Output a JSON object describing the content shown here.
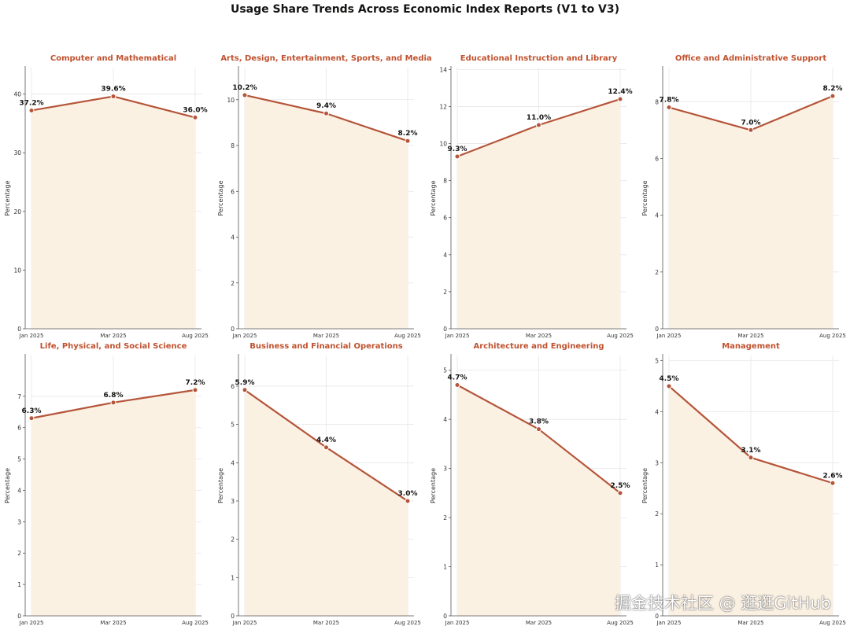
{
  "figure_title": "Usage Share Trends Across Economic Index Reports (V1 to V3)",
  "watermark": "掘金技术社区 @ 逛逛GitHub",
  "colors": {
    "line": "#b5553a",
    "fill": "#fbf1e3",
    "title": "#c0522f",
    "grid": "#e6e6e6",
    "axis": "#555555"
  },
  "chart_data": [
    {
      "type": "area",
      "title": "Computer and Mathematical",
      "x": [
        "Jan 2025",
        "Mar 2025",
        "Aug 2025"
      ],
      "values": [
        37.2,
        39.6,
        36.0
      ],
      "labels": [
        "37.2%",
        "39.6%",
        "36.0%"
      ],
      "ylabel": "Percentage",
      "ylim": [
        0,
        44.5
      ],
      "yticks": [
        0,
        10,
        20,
        30,
        40
      ],
      "grid": true
    },
    {
      "type": "area",
      "title": "Arts, Design, Entertainment, Sports, and Media",
      "x": [
        "Jan 2025",
        "Mar 2025",
        "Aug 2025"
      ],
      "values": [
        10.2,
        9.4,
        8.2
      ],
      "labels": [
        "10.2%",
        "9.4%",
        "8.2%"
      ],
      "ylabel": "Percentage",
      "ylim": [
        0,
        11.4
      ],
      "yticks": [
        0,
        2,
        4,
        6,
        8,
        10
      ],
      "grid": true
    },
    {
      "type": "area",
      "title": "Educational Instruction and Library",
      "x": [
        "Jan 2025",
        "Mar 2025",
        "Aug 2025"
      ],
      "values": [
        9.3,
        11.0,
        12.4
      ],
      "labels": [
        "9.3%",
        "11.0%",
        "12.4%"
      ],
      "ylabel": "Percentage",
      "ylim": [
        0,
        14.1
      ],
      "yticks": [
        0,
        2,
        4,
        6,
        8,
        10,
        12,
        14
      ],
      "grid": true
    },
    {
      "type": "area",
      "title": "Office and Administrative Support",
      "x": [
        "Jan 2025",
        "Mar 2025",
        "Aug 2025"
      ],
      "values": [
        7.8,
        7.0,
        8.2
      ],
      "labels": [
        "7.8%",
        "7.0%",
        "8.2%"
      ],
      "ylabel": "Percentage",
      "ylim": [
        0,
        9.2
      ],
      "yticks": [
        0,
        2,
        4,
        6,
        8
      ],
      "grid": true
    },
    {
      "type": "area",
      "title": "Life, Physical, and Social Science",
      "x": [
        "Jan 2025",
        "Mar 2025",
        "Aug 2025"
      ],
      "values": [
        6.3,
        6.8,
        7.2
      ],
      "labels": [
        "6.3%",
        "6.8%",
        "7.2%"
      ],
      "ylabel": "Percentage",
      "ylim": [
        0,
        8.3
      ],
      "yticks": [
        0,
        1,
        2,
        3,
        4,
        5,
        6,
        7
      ],
      "grid": true
    },
    {
      "type": "area",
      "title": "Business and Financial Operations",
      "x": [
        "Jan 2025",
        "Mar 2025",
        "Aug 2025"
      ],
      "values": [
        5.9,
        4.4,
        3.0
      ],
      "labels": [
        "5.9%",
        "4.4%",
        "3.0%"
      ],
      "ylabel": "Percentage",
      "ylim": [
        0,
        6.8
      ],
      "yticks": [
        0,
        1,
        2,
        3,
        4,
        5,
        6
      ],
      "grid": true
    },
    {
      "type": "area",
      "title": "Architecture and Engineering",
      "x": [
        "Jan 2025",
        "Mar 2025",
        "Aug 2025"
      ],
      "values": [
        4.7,
        3.8,
        2.5
      ],
      "labels": [
        "4.7%",
        "3.8%",
        "2.5%"
      ],
      "ylabel": "Percentage",
      "ylim": [
        0,
        5.3
      ],
      "yticks": [
        0,
        1,
        2,
        3,
        4,
        5
      ],
      "grid": true
    },
    {
      "type": "area",
      "title": "Management",
      "x": [
        "Jan 2025",
        "Mar 2025",
        "Aug 2025"
      ],
      "values": [
        4.5,
        3.1,
        2.6
      ],
      "labels": [
        "4.5%",
        "3.1%",
        "2.6%"
      ],
      "ylabel": "Percentage",
      "ylim": [
        0,
        5.1
      ],
      "yticks": [
        0,
        1,
        2,
        3,
        4,
        5
      ],
      "grid": true
    }
  ]
}
